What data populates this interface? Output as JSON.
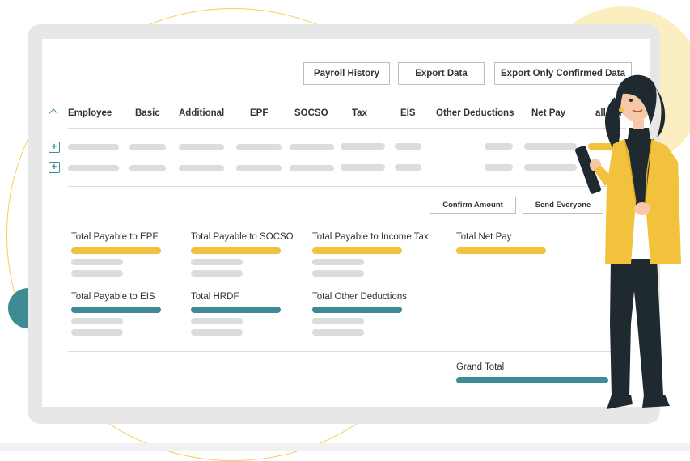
{
  "toolbar": {
    "payroll_history": "Payroll History",
    "export_data": "Export Data",
    "export_confirmed": "Export Only Confirmed Data"
  },
  "table": {
    "columns": [
      "Employee",
      "Basic",
      "Additional",
      "EPF",
      "SOCSO",
      "Tax",
      "EIS",
      "Other Deductions",
      "Net Pay",
      "all in R"
    ],
    "expand_glyph": "+"
  },
  "actions": {
    "confirm_amount": "Confirm Amount",
    "send_everyone": "Send Everyone"
  },
  "summary": {
    "epf": "Total Payable to EPF",
    "socso": "Total Payable to SOCSO",
    "income_tax": "Total Payable to Income Tax",
    "net_pay": "Total Net Pay",
    "eis": "Total Payable to EIS",
    "hrdf": "Total HRDF",
    "other_deductions": "Total Other Deductions",
    "grand_total": "Grand Total"
  },
  "colors": {
    "accent_gold": "#f2c23c",
    "accent_teal": "#3e8b96",
    "placeholder": "#dcdcdc"
  }
}
